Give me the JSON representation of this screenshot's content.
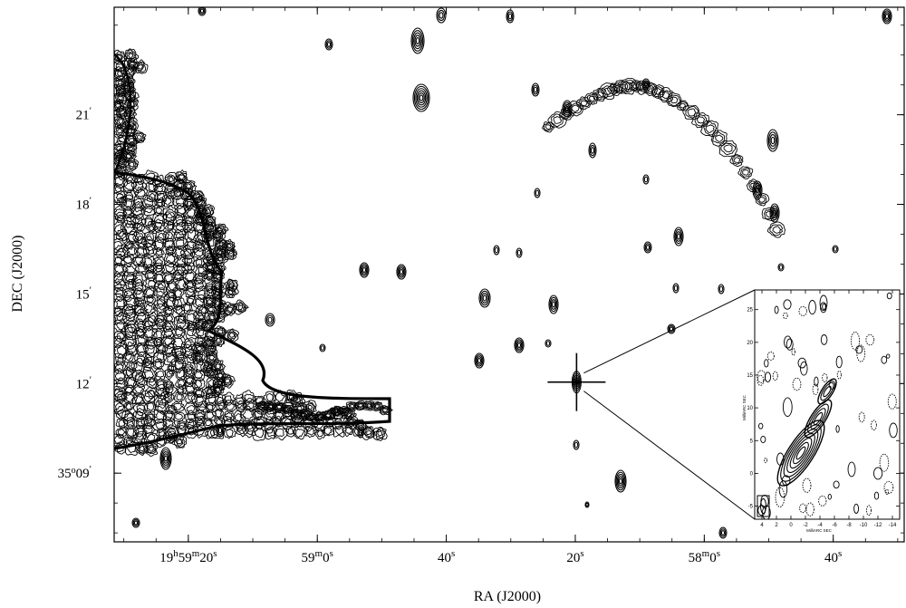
{
  "chart_data": {
    "type": "contour",
    "xlabel": "RA (J2000)",
    "ylabel": "DEC (J2000)",
    "x_ticks": [
      {
        "h": "19",
        "m": "59",
        "s": "20",
        "sec": 71960
      },
      {
        "m": "59",
        "s": "0",
        "sec": 71940
      },
      {
        "s": "40",
        "sec": 71920
      },
      {
        "s": "20",
        "sec": 71900
      },
      {
        "m": "58",
        "s": "0",
        "sec": 71880
      },
      {
        "s": "40",
        "sec": 71860
      }
    ],
    "y_ticks": [
      {
        "label": "21",
        "arcmin": 21
      },
      {
        "label": "18",
        "arcmin": 18
      },
      {
        "label": "15",
        "arcmin": 15
      },
      {
        "label": "12",
        "arcmin": 12
      },
      {
        "deg": "35",
        "label": "09",
        "arcmin": 9
      }
    ],
    "xlim_sec": [
      71971.5,
      71849
    ],
    "ylim_arcmin": [
      24.6,
      6.7
    ],
    "marker": {
      "ra_sec": 71899.8,
      "dec_arcmin": 12.05
    },
    "inset": {
      "xlabel": "MilliARC SEC",
      "ylabel": "MilliARC SEC",
      "x_ticks": [
        "4",
        "2",
        "0",
        "-2",
        "-4",
        "-6",
        "-8",
        "-10",
        "-12",
        "-14"
      ],
      "y_ticks": [
        "25",
        "20",
        "15",
        "10",
        "5",
        "0",
        "-5"
      ],
      "xlim": [
        5,
        -15
      ],
      "ylim": [
        -7,
        28
      ]
    }
  }
}
